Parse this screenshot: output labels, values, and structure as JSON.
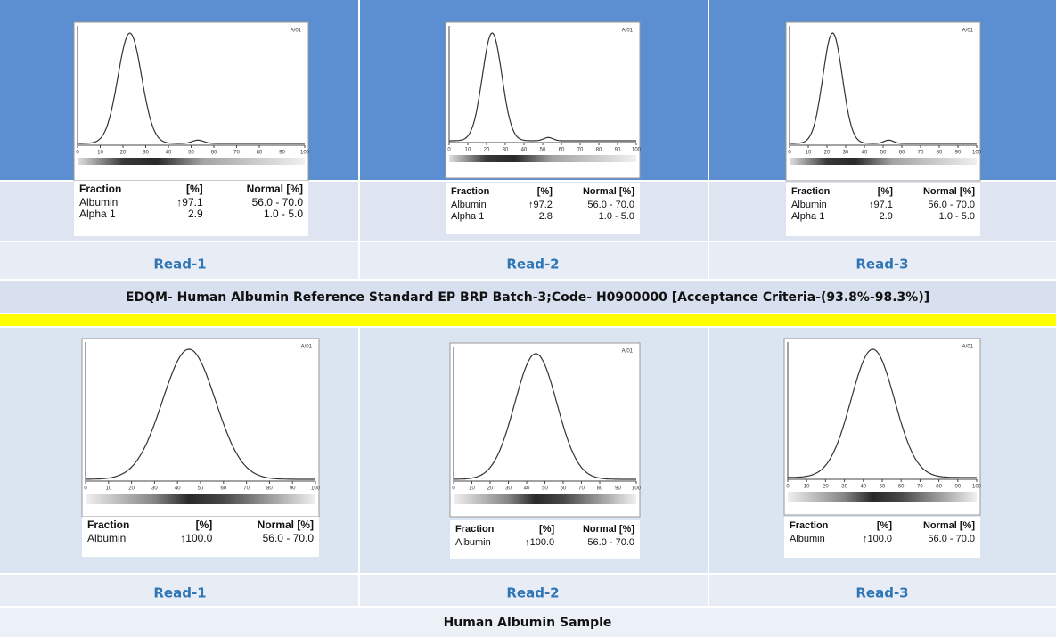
{
  "panel_tag": "A/01",
  "axis_ticks": [
    0,
    10,
    20,
    30,
    40,
    50,
    60,
    70,
    80,
    90,
    100
  ],
  "table_header": [
    "Fraction",
    "[%]",
    "Normal [%]"
  ],
  "sections": [
    {
      "panels": [
        {
          "label": "Read-1",
          "rows": [
            [
              "Albumin",
              "↑97.1",
              "56.0 - 70.0"
            ],
            [
              "Alpha 1",
              "2.9",
              "1.0 -  5.0"
            ]
          ]
        },
        {
          "label": "Read-2",
          "rows": [
            [
              "Albumin",
              "↑97.2",
              "56.0 - 70.0"
            ],
            [
              "Alpha 1",
              "2.8",
              "1.0 -  5.0"
            ]
          ]
        },
        {
          "label": "Read-3",
          "rows": [
            [
              "Albumin",
              "↑97.1",
              "56.0 - 70.0"
            ],
            [
              "Alpha 1",
              "2.9",
              "1.0 -  5.0"
            ]
          ]
        }
      ],
      "caption": "EDQM- Human Albumin Reference Standard EP BRP Batch-3;Code-  H0900000 [Acceptance Criteria-(93.8%-98.3%)]"
    },
    {
      "panels": [
        {
          "label": "Read-1",
          "rows": [
            [
              "Albumin",
              "↑100.0",
              "56.0 - 70.0"
            ]
          ]
        },
        {
          "label": "Read-2",
          "rows": [
            [
              "Albumin",
              "↑100.0",
              "56.0 - 70.0"
            ]
          ]
        },
        {
          "label": "Read-3",
          "rows": [
            [
              "Albumin",
              "↑100.0",
              "56.0 - 70.0"
            ]
          ]
        }
      ],
      "caption": "Human Albumin Sample"
    }
  ]
}
